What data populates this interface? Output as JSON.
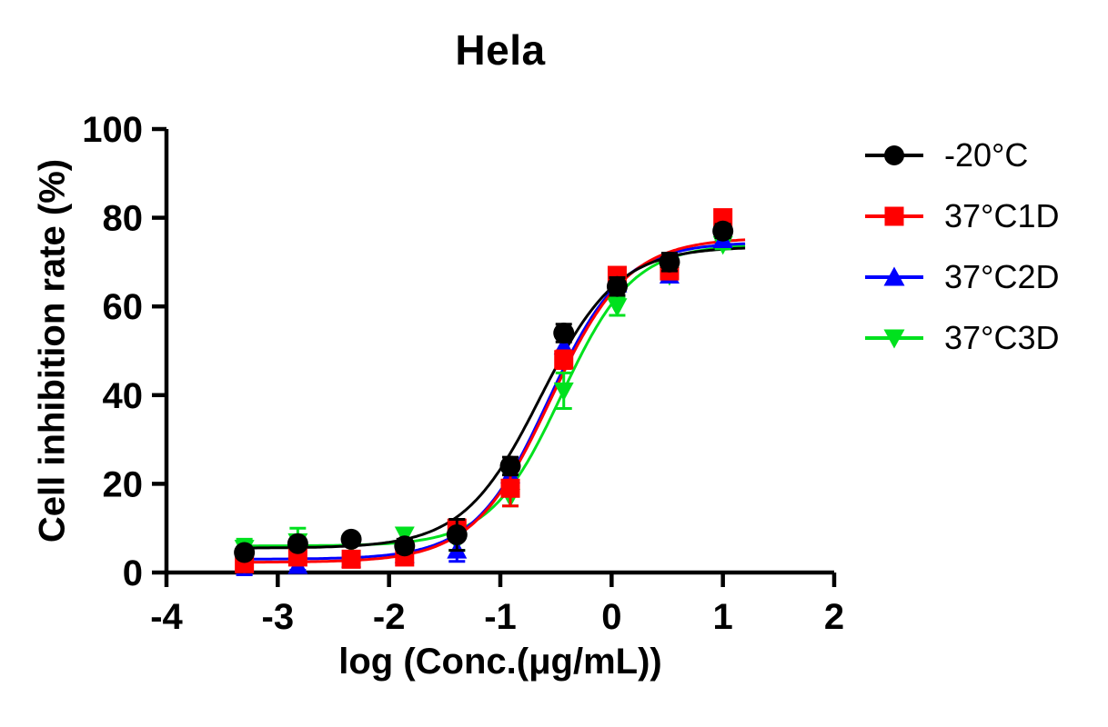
{
  "chart_data": {
    "type": "scatter",
    "title": "Hela",
    "xlabel": "log (Conc.(μg/mL))",
    "ylabel": "Cell inhibition rate (%)",
    "xlim": [
      -4,
      2
    ],
    "ylim": [
      0,
      100
    ],
    "xticks": [
      -4,
      -3,
      -2,
      -1,
      0,
      1,
      2
    ],
    "yticks": [
      0,
      20,
      40,
      60,
      80,
      100
    ],
    "grid": false,
    "legend_position": "right of plot, top",
    "fit_model": "four-parameter logistic dose-response curve",
    "curve_x_range": [
      -3.3,
      1.2
    ],
    "x": [
      -3.3,
      -2.82,
      -2.34,
      -1.86,
      -1.39,
      -0.91,
      -0.43,
      0.05,
      0.52,
      1.0
    ],
    "series": [
      {
        "name": "-20°C",
        "color": "#000000",
        "marker": "circle",
        "values": [
          4.5,
          6.5,
          7.5,
          6,
          8.5,
          24,
          54,
          64.5,
          70,
          77
        ],
        "errors": [
          1,
          1,
          1,
          1.5,
          3.5,
          2,
          2,
          2,
          2,
          1.5
        ],
        "fit": {
          "bottom": 5.5,
          "top": 73.5,
          "logec50": -0.64,
          "hill": 1.25
        }
      },
      {
        "name": "37°C1D",
        "color": "#ff0000",
        "marker": "square",
        "values": [
          2,
          3.5,
          3,
          3.5,
          10,
          19,
          48,
          67,
          68,
          80
        ],
        "errors": [
          1.5,
          1.5,
          1.5,
          1.5,
          2,
          4,
          2,
          1.5,
          1.5,
          1.5
        ],
        "fit": {
          "bottom": 2.3,
          "top": 75.5,
          "logec50": -0.55,
          "hill": 1.25
        }
      },
      {
        "name": "37°C2D",
        "color": "#0000ff",
        "marker": "triangle-up",
        "values": [
          2,
          1.5,
          3,
          4,
          5,
          22,
          51,
          65,
          67,
          75
        ],
        "errors": [
          2.5,
          1,
          1,
          1,
          2.5,
          2,
          2,
          1.5,
          1.5,
          1
        ],
        "fit": {
          "bottom": 3.0,
          "top": 74.5,
          "logec50": -0.57,
          "hill": 1.3
        }
      },
      {
        "name": "37°C3D",
        "color": "#00e11e",
        "marker": "triangle-down",
        "values": [
          5.5,
          7,
          6.5,
          8.5,
          7,
          17,
          41,
          60,
          67,
          74
        ],
        "errors": [
          2,
          3,
          2,
          1.5,
          2,
          2,
          4,
          2,
          1.5,
          1
        ],
        "fit": {
          "bottom": 6.0,
          "top": 74.0,
          "logec50": -0.45,
          "hill": 1.35
        }
      }
    ]
  }
}
